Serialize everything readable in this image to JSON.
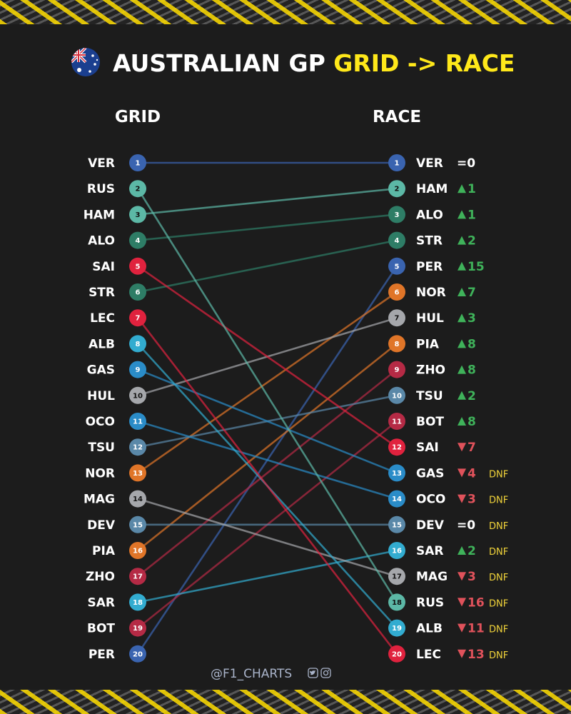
{
  "title_main": "AUSTRALIAN GP ",
  "title_highlight": "GRID -> RACE",
  "flag": "australia-flag-icon",
  "colors": {
    "background": "#1c1c1c",
    "highlight": "#ffe81a",
    "up": "#3fb25a",
    "down": "#e0525b",
    "dnf": "#f2d43a"
  },
  "footer": {
    "handle": "@F1_CHARTS",
    "icons": [
      "twitter-icon",
      "instagram-icon"
    ]
  },
  "chart_data": {
    "type": "slope",
    "columns": [
      "GRID",
      "RACE"
    ],
    "grid_order": [
      "VER",
      "RUS",
      "HAM",
      "ALO",
      "SAI",
      "STR",
      "LEC",
      "ALB",
      "GAS",
      "HUL",
      "OCO",
      "TSU",
      "NOR",
      "MAG",
      "DEV",
      "PIA",
      "ZHO",
      "SAR",
      "BOT",
      "PER"
    ],
    "drivers": [
      {
        "code": "VER",
        "grid": 1,
        "race": 1,
        "change": "=0",
        "dir": "same",
        "dnf": false,
        "color": "#3a64b0"
      },
      {
        "code": "HAM",
        "grid": 3,
        "race": 2,
        "change": "1",
        "dir": "up",
        "dnf": false,
        "color": "#5cb8a6"
      },
      {
        "code": "ALO",
        "grid": 4,
        "race": 3,
        "change": "1",
        "dir": "up",
        "dnf": false,
        "color": "#2e7d66"
      },
      {
        "code": "STR",
        "grid": 6,
        "race": 4,
        "change": "2",
        "dir": "up",
        "dnf": false,
        "color": "#2e7d66"
      },
      {
        "code": "PER",
        "grid": 20,
        "race": 5,
        "change": "15",
        "dir": "up",
        "dnf": false,
        "color": "#3a64b0"
      },
      {
        "code": "NOR",
        "grid": 13,
        "race": 6,
        "change": "7",
        "dir": "up",
        "dnf": false,
        "color": "#e07528"
      },
      {
        "code": "HUL",
        "grid": 10,
        "race": 7,
        "change": "3",
        "dir": "up",
        "dnf": false,
        "color": "#a5a7ab"
      },
      {
        "code": "PIA",
        "grid": 16,
        "race": 8,
        "change": "8",
        "dir": "up",
        "dnf": false,
        "color": "#e07528"
      },
      {
        "code": "ZHO",
        "grid": 17,
        "race": 9,
        "change": "8",
        "dir": "up",
        "dnf": false,
        "color": "#b52a45"
      },
      {
        "code": "TSU",
        "grid": 12,
        "race": 10,
        "change": "2",
        "dir": "up",
        "dnf": false,
        "color": "#5a88a8"
      },
      {
        "code": "BOT",
        "grid": 19,
        "race": 11,
        "change": "8",
        "dir": "up",
        "dnf": false,
        "color": "#b52a45"
      },
      {
        "code": "SAI",
        "grid": 5,
        "race": 12,
        "change": "7",
        "dir": "down",
        "dnf": false,
        "color": "#e0223e"
      },
      {
        "code": "GAS",
        "grid": 9,
        "race": 13,
        "change": "4",
        "dir": "down",
        "dnf": true,
        "color": "#2a8cc8"
      },
      {
        "code": "OCO",
        "grid": 11,
        "race": 14,
        "change": "3",
        "dir": "down",
        "dnf": true,
        "color": "#2a8cc8"
      },
      {
        "code": "DEV",
        "grid": 15,
        "race": 15,
        "change": "=0",
        "dir": "same",
        "dnf": true,
        "color": "#5a88a8"
      },
      {
        "code": "SAR",
        "grid": 18,
        "race": 16,
        "change": "2",
        "dir": "up",
        "dnf": true,
        "color": "#32acd0"
      },
      {
        "code": "MAG",
        "grid": 14,
        "race": 17,
        "change": "3",
        "dir": "down",
        "dnf": true,
        "color": "#a5a7ab"
      },
      {
        "code": "RUS",
        "grid": 2,
        "race": 18,
        "change": "16",
        "dir": "down",
        "dnf": true,
        "color": "#5cb8a6"
      },
      {
        "code": "ALB",
        "grid": 8,
        "race": 19,
        "change": "11",
        "dir": "down",
        "dnf": true,
        "color": "#32acd0"
      },
      {
        "code": "LEC",
        "grid": 7,
        "race": 20,
        "change": "13",
        "dir": "down",
        "dnf": true,
        "color": "#e0223e"
      }
    ],
    "dnf_label": "DNF"
  }
}
